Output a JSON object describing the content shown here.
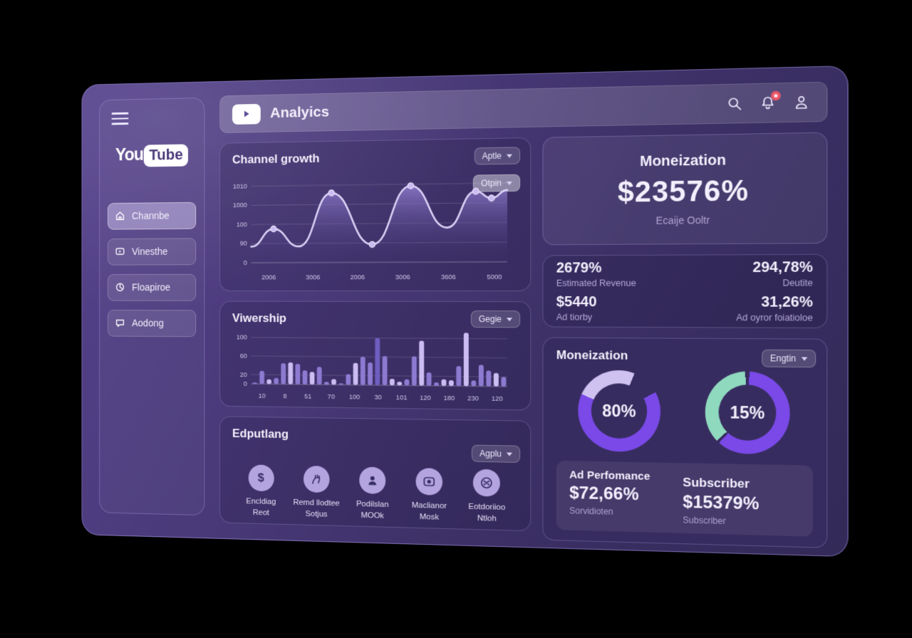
{
  "app": {
    "title": "Analyics",
    "brand_you": "You",
    "brand_tube": "Tube"
  },
  "header": {
    "icons": [
      "search-icon",
      "notification-bell-icon",
      "profile-icon"
    ],
    "notification_badge": true
  },
  "sidebar": {
    "items": [
      {
        "label": "Channbe",
        "icon": "home-icon",
        "active": true
      },
      {
        "label": "Vinesthe",
        "icon": "video-icon",
        "active": false
      },
      {
        "label": "Floapiroe",
        "icon": "chart-icon",
        "active": false
      },
      {
        "label": "Aodong",
        "icon": "chat-icon",
        "active": false
      }
    ]
  },
  "cards": {
    "channel_growth": {
      "title": "Channel growth",
      "dropdown_primary": "Aptle",
      "dropdown_secondary": "Otpin"
    },
    "viewership": {
      "title": "Viwership",
      "dropdown": "Gegie"
    },
    "features": {
      "title": "Edputlang",
      "dropdown": "Agplu",
      "items": [
        {
          "icon": "dollar-icon",
          "line1": "Encldiag",
          "line2": "Reot"
        },
        {
          "icon": "hand-icon",
          "line1": "Remd llodtee",
          "line2": "Sotjus"
        },
        {
          "icon": "person-icon",
          "line1": "Podilslan",
          "line2": "MOOk"
        },
        {
          "icon": "monitor-icon",
          "line1": "Maclianor",
          "line2": "Mosk"
        },
        {
          "icon": "camera-icon",
          "line1": "Eotdoriioo",
          "line2": "Ntloh"
        }
      ]
    },
    "monetization_hero": {
      "title": "Moneization",
      "value": "$23576%",
      "subtitle": "Ecaije Ooltr"
    },
    "stats": {
      "items": [
        {
          "value": "2679%",
          "label": "Estimated Revenue"
        },
        {
          "value": "294,78%",
          "label": "Deutite"
        },
        {
          "value": "$5440",
          "label": "Ad tiorby"
        },
        {
          "value": "31,26%",
          "label": "Ad oyror foiatioloe"
        }
      ]
    },
    "monetization_breakdown": {
      "title": "Moneization",
      "dropdown": "Engtin",
      "stats": [
        {
          "label": "Ad Perfomance",
          "value": "$72,66%",
          "sub": "Sorvidioten"
        },
        {
          "label": "Subscriber",
          "value": "$15379%",
          "sub": "Subscriber"
        }
      ]
    }
  },
  "colors": {
    "accent_purple": "#7a49e8",
    "lavender": "#cfc2f0",
    "teal": "#8fd9bf",
    "badge_red": "#e85568"
  },
  "chart_data": [
    {
      "id": "channel-growth",
      "type": "line",
      "title": "Channel growth",
      "x_labels": [
        "2006",
        "3006",
        "2006",
        "3006",
        "3606",
        "5000"
      ],
      "y_ticks": [
        "1010",
        "1000",
        "100",
        "90",
        "0"
      ],
      "points_pct": [
        [
          0,
          21
        ],
        [
          9,
          44
        ],
        [
          19,
          21
        ],
        [
          32,
          90
        ],
        [
          48,
          23
        ],
        [
          63,
          98
        ],
        [
          77,
          44
        ],
        [
          88,
          90
        ],
        [
          94,
          81
        ],
        [
          100,
          91
        ]
      ],
      "markers_idx": [
        1,
        3,
        4,
        5,
        7,
        8
      ],
      "ylim_note": "percent of plot height",
      "grid": true,
      "legend": "none",
      "colors": {
        "line": "#d9d2f5",
        "fill_top": "rgba(148,128,212,0.80)",
        "fill_bottom": "rgba(60,48,110,0.05)"
      }
    },
    {
      "id": "viewership",
      "type": "bar",
      "title": "Viwership",
      "x_labels": [
        "10",
        "8",
        "51",
        "70",
        "100",
        "30",
        "101",
        "120",
        "180",
        "230",
        "120"
      ],
      "y_ticks": [
        "100",
        "60",
        "20",
        "0"
      ],
      "ylim": [
        0,
        120
      ],
      "values": [
        3,
        28,
        10,
        13,
        45,
        47,
        44,
        30,
        27,
        38,
        6,
        12,
        3,
        23,
        47,
        60,
        48,
        100,
        62,
        14,
        8,
        13,
        62,
        95,
        28,
        7,
        14,
        12,
        42,
        112,
        12,
        45,
        33,
        28,
        20
      ],
      "shades": [
        "m",
        "m",
        "l",
        "m",
        "m",
        "l",
        "m",
        "m",
        "l",
        "m",
        "m",
        "l",
        "m",
        "m",
        "l",
        "m",
        "m",
        "d",
        "m",
        "l",
        "l",
        "m",
        "m",
        "l",
        "m",
        "m",
        "l",
        "l",
        "m",
        "l",
        "m",
        "m",
        "m",
        "l",
        "m"
      ],
      "grid": true,
      "legend": "none",
      "colors": {
        "m": "#8d7bd2",
        "l": "#cbbcf2",
        "d": "#6f5ec0"
      }
    },
    {
      "id": "ad-performance-donut",
      "type": "donut",
      "center_label": "80%",
      "segments": [
        {
          "from": 0,
          "to": 22,
          "color": "#cfc2f0"
        },
        {
          "from": 22,
          "to": 62,
          "color": "transparent"
        },
        {
          "from": 62,
          "to": 294,
          "color": "#7a49e8"
        },
        {
          "from": 294,
          "to": 360,
          "color": "#cfc2f0"
        }
      ]
    },
    {
      "id": "subscriber-donut",
      "type": "donut",
      "center_label": "15%",
      "segments": [
        {
          "from": 3,
          "to": 222,
          "color": "#7a49e8"
        },
        {
          "from": 226,
          "to": 357,
          "color": "#8fd9bf"
        }
      ]
    }
  ]
}
